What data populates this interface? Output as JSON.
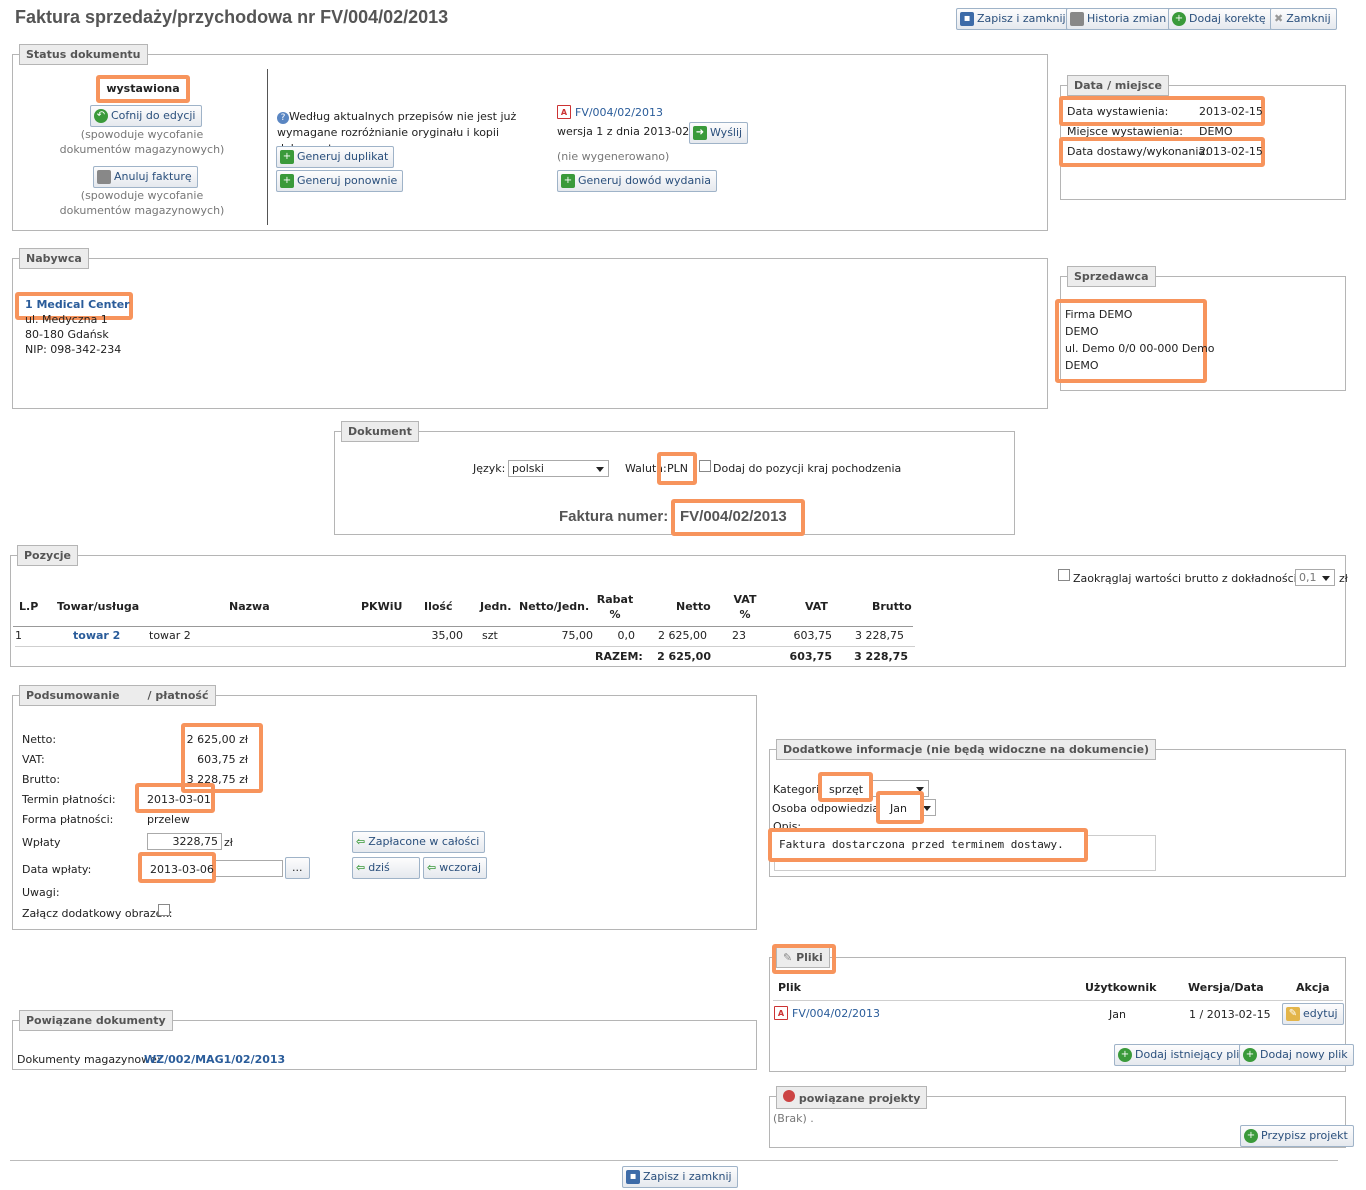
{
  "header": {
    "title": "Faktura sprzedaży/przychodowa nr FV/004/02/2013",
    "save_close": "Zapisz i zamknij",
    "history": "Historia zmian",
    "add_correction": "Dodaj korektę",
    "close": "Zamknij"
  },
  "status": {
    "legend": "Status dokumentu",
    "value": "wystawiona",
    "revert_btn": "Cofnij do edycji",
    "revert_note": "(spowoduje wycofanie dokumentów magazynowych)",
    "cancel_btn": "Anuluj fakturę",
    "cancel_note": "(spowoduje wycofanie dokumentów magazynowych)",
    "info": "Według aktualnych przepisów nie jest już wymagane rozróżnianie oryginału i kopii dokumentu",
    "gen_duplicate": "Generuj duplikat",
    "gen_again": "Generuj ponownie",
    "file": "FV/004/02/2013",
    "version": "wersja 1 z dnia 2013-02-15",
    "send": "Wyślij",
    "not_generated": "(nie wygenerowano)",
    "gen_issue_proof": "Generuj dowód wydania"
  },
  "date_place": {
    "legend": "Data / miejsce",
    "issue_label": "Data wystawienia:",
    "issue_value": "2013-02-15",
    "place_label": "Miejsce wystawienia:",
    "place_value": "DEMO",
    "delivery_label": "Data dostawy/wykonania:",
    "delivery_value": "2013-02-15"
  },
  "buyer": {
    "legend": "Nabywca",
    "name": "1 Medical Center",
    "street": "ul. Medyczna 1",
    "city": "80-180 Gdańsk",
    "nip": "NIP: 098-342-234"
  },
  "seller": {
    "legend": "Sprzedawca",
    "line1": "Firma DEMO",
    "line2": "DEMO",
    "line3": "ul. Demo 0/0 00-000 Demo",
    "line4": "DEMO"
  },
  "document": {
    "legend": "Dokument",
    "lang_label": "Język:",
    "lang_value": "polski",
    "currency_label": "Waluta:",
    "currency_value": "PLN",
    "origin_label": "Dodaj do pozycji kraj pochodzenia",
    "number_label": "Faktura numer:",
    "number_value": "FV/004/02/2013"
  },
  "positions": {
    "legend": "Pozycje",
    "round_label": "Zaokrąglaj wartości brutto z dokładnością do:",
    "round_value": "0,1",
    "round_unit": "zł",
    "headers": [
      "L.P",
      "Towar/usługa",
      "Nazwa",
      "PKWiU",
      "Ilość",
      "Jedn.",
      "Netto/Jedn.",
      "Rabat %",
      "Netto",
      "VAT %",
      "VAT",
      "Brutto"
    ],
    "row": {
      "lp": "1",
      "item": "towar 2",
      "name": "towar 2",
      "pkwiu": "",
      "qty": "35,00",
      "unit": "szt",
      "unit_net": "75,00",
      "discount": "0,0",
      "net": "2 625,00",
      "vat_pct": "23",
      "vat": "603,75",
      "gross": "3 228,75"
    },
    "total": {
      "label": "RAZEM:",
      "net": "2 625,00",
      "vat": "603,75",
      "gross": "3 228,75"
    }
  },
  "summary": {
    "legend": "Podsumowanie",
    "legend2": "/ płatność",
    "net_label": "Netto:",
    "net_value": "2 625,00 zł",
    "vat_label": "VAT:",
    "vat_value": "603,75 zł",
    "gross_label": "Brutto:",
    "gross_value": "3 228,75 zł",
    "term_label": "Termin płatności:",
    "term_value": "2013-03-01",
    "form_label": "Forma płatności:",
    "form_value": "przelew",
    "paid_label": "Wpłaty",
    "paid_value": "3228,75",
    "paid_unit": "zł",
    "paid_all": "Zapłacone w całości",
    "pay_date_label": "Data wpłaty:",
    "pay_date_value": "2013-03-06",
    "picker": "...",
    "today": "dziś",
    "yesterday": "wczoraj",
    "notes_label": "Uwagi:",
    "attach_label": "Załącz dodatkowy obrazek:"
  },
  "extra": {
    "legend": "Dodatkowe informacje (nie będą widoczne na dokumencie)",
    "category_label": "Kategoria:",
    "category_value": "sprzęt",
    "person_label": "Osoba odpowiedzialna:",
    "person_value": "Jan",
    "desc_label": "Opis:",
    "desc_value": "Faktura dostarczona przed terminem dostawy."
  },
  "files": {
    "legend": "Pliki",
    "col_file": "Plik",
    "col_user": "Użytkownik",
    "col_version": "Wersja/Data",
    "col_action": "Akcja",
    "file": "FV/004/02/2013",
    "user": "Jan",
    "version": "1 / 2013-02-15",
    "edit": "edytuj",
    "add_existing": "Dodaj istniejący plik",
    "add_new": "Dodaj nowy plik"
  },
  "related": {
    "legend": "Powiązane dokumenty",
    "label": "Dokumenty magazynowe:",
    "value": "WZ/002/MAG1/02/2013"
  },
  "projects": {
    "legend": "powiązane projekty",
    "none": "(Brak) .",
    "assign": "Przypisz projekt"
  },
  "footer": {
    "save_close": "Zapisz i zamknij"
  }
}
